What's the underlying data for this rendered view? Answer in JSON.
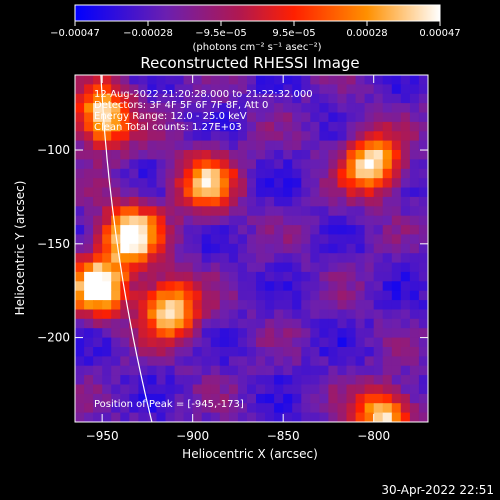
{
  "chart_data": {
    "type": "heatmap",
    "title": "Reconstructed RHESSI Image",
    "xlabel": "Heliocentric X (arcsec)",
    "ylabel": "Heliocentric Y (arcsec)",
    "xlim": [
      -965,
      -770
    ],
    "ylim": [
      -245,
      -60
    ],
    "x_ticks": [
      {
        "value": -950,
        "label": "−950"
      },
      {
        "value": -900,
        "label": "−900"
      },
      {
        "value": -850,
        "label": "−850"
      },
      {
        "value": -800,
        "label": "−800"
      }
    ],
    "y_ticks": [
      {
        "value": -100,
        "label": "−100"
      },
      {
        "value": -150,
        "label": "−150"
      },
      {
        "value": -200,
        "label": "−200"
      }
    ],
    "colorbar": {
      "range": [
        -0.00047,
        0.00047
      ],
      "tick_labels": [
        "−0.00047",
        "−0.00028",
        "−9.5e−05",
        "9.5e−05",
        "0.00028",
        "0.00047"
      ],
      "unit": "(photons cm⁻² s⁻¹ asec⁻²)",
      "colors": [
        "#0000ff",
        "#6b1fb0",
        "#b01850",
        "#ff2000",
        "#ff9000",
        "#ffffff"
      ]
    },
    "annotations": {
      "time": "12-Aug-2022 21:20:28.000 to 21:22:32.000",
      "detectors": "Detectors: 3F 4F 5F 6F 7F 8F, Att 0",
      "energy": "Energy Range: 12.0 - 25.0 keV",
      "clean": "Clean    Total counts: 1.27E+03",
      "peak": "Position of Peak = [-945,-173]"
    },
    "peak": {
      "x": -945,
      "y": -173
    },
    "bright_sources": [
      {
        "x": -955,
        "y": -170,
        "level": 0.95
      },
      {
        "x": -937,
        "y": -143,
        "level": 1.0
      },
      {
        "x": -915,
        "y": -182,
        "level": 0.9
      },
      {
        "x": -952,
        "y": -80,
        "level": 0.95
      },
      {
        "x": -895,
        "y": -115,
        "level": 0.75
      },
      {
        "x": -803,
        "y": -105,
        "level": 0.9
      },
      {
        "x": -797,
        "y": -240,
        "level": 0.85
      }
    ]
  },
  "footer": {
    "timestamp": "30-Apr-2022 22:51"
  }
}
